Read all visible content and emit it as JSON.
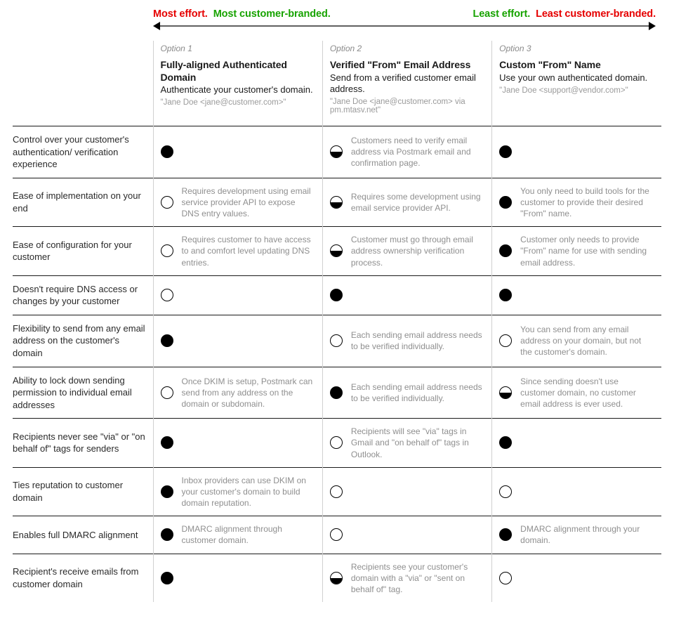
{
  "headline": {
    "left_effort": "Most effort.",
    "left_brand": "Most customer-branded.",
    "right_effort": "Least effort.",
    "right_brand": "Least customer-branded."
  },
  "colors": {
    "red": "#e60000",
    "green": "#17a300",
    "row_border": "#1a1a1a",
    "col_border": "#d0d0d0",
    "note_text": "#8f8f8f",
    "example_text": "#9a9a9a"
  },
  "columns": [
    {
      "opt_num": "Option 1",
      "title": "Fully-aligned Authenticated Domain",
      "sub": "Authenticate your customer's domain.",
      "example": "\"Jane Doe <jane@customer.com>\""
    },
    {
      "opt_num": "Option 2",
      "title": "Verified \"From\" Email Address",
      "sub": "Send from a verified customer email address.",
      "example": "\"Jane Doe <jane@customer.com> via pm.mtasv.net\""
    },
    {
      "opt_num": "Option 3",
      "title": "Custom \"From\" Name",
      "sub": "Use your own authenticated domain.",
      "example": "\"Jane Doe <support@vendor.com>\""
    }
  ],
  "rows": [
    {
      "label": "Control over your customer's authentication/ verification experience",
      "cells": [
        {
          "state": "full",
          "note": ""
        },
        {
          "state": "half",
          "note": "Customers need to verify email address via Postmark email and confirmation page."
        },
        {
          "state": "full",
          "note": ""
        }
      ]
    },
    {
      "label": "Ease of implementation on your end",
      "cells": [
        {
          "state": "empty",
          "note": "Requires development using email service provider API to expose DNS entry values."
        },
        {
          "state": "half",
          "note": "Requires some development using email service provider API."
        },
        {
          "state": "full",
          "note": "You only need to build tools for the customer to provide their desired \"From\" name."
        }
      ]
    },
    {
      "label": "Ease of configuration for your customer",
      "cells": [
        {
          "state": "empty",
          "note": "Requires customer to have access to and comfort level updating DNS entries."
        },
        {
          "state": "half",
          "note": "Customer must go through email address ownership verification process."
        },
        {
          "state": "full",
          "note": "Customer only needs to provide \"From\" name for use with sending email address."
        }
      ]
    },
    {
      "label": "Doesn't require DNS access or changes by your customer",
      "cells": [
        {
          "state": "empty",
          "note": ""
        },
        {
          "state": "full",
          "note": ""
        },
        {
          "state": "full",
          "note": ""
        }
      ]
    },
    {
      "label": "Flexibility to send from any email address on the customer's domain",
      "cells": [
        {
          "state": "full",
          "note": ""
        },
        {
          "state": "empty",
          "note": "Each sending email address needs to be verified individually."
        },
        {
          "state": "empty",
          "note": "You can send from any email address on your domain, but not the customer's domain."
        }
      ]
    },
    {
      "label": "Ability to lock down sending permission to individual email addresses",
      "cells": [
        {
          "state": "empty",
          "note": "Once DKIM is setup, Postmark can send from any address on the domain or subdomain."
        },
        {
          "state": "full",
          "note": "Each sending email address needs to be verified individually."
        },
        {
          "state": "half",
          "note": "Since sending doesn't use customer domain, no customer email address is ever used."
        }
      ]
    },
    {
      "label": "Recipients never see \"via\" or \"on behalf of\" tags for senders",
      "cells": [
        {
          "state": "full",
          "note": ""
        },
        {
          "state": "empty",
          "note": "Recipients will see \"via\" tags in Gmail and \"on behalf of\" tags in Outlook."
        },
        {
          "state": "full",
          "note": ""
        }
      ]
    },
    {
      "label": "Ties reputation to customer domain",
      "cells": [
        {
          "state": "full",
          "note": "Inbox providers can use DKIM on your customer's domain to build domain reputation."
        },
        {
          "state": "empty",
          "note": ""
        },
        {
          "state": "empty",
          "note": ""
        }
      ]
    },
    {
      "label": "Enables full DMARC alignment",
      "cells": [
        {
          "state": "full",
          "note": "DMARC alignment through customer domain."
        },
        {
          "state": "empty",
          "note": ""
        },
        {
          "state": "full",
          "note": "DMARC alignment through your domain."
        }
      ]
    },
    {
      "label": "Recipient's receive emails from customer domain",
      "cells": [
        {
          "state": "full",
          "note": ""
        },
        {
          "state": "half",
          "note": "Recipients see your customer's domain with a \"via\" or \"sent on behalf of\" tag."
        },
        {
          "state": "empty",
          "note": ""
        }
      ]
    }
  ]
}
